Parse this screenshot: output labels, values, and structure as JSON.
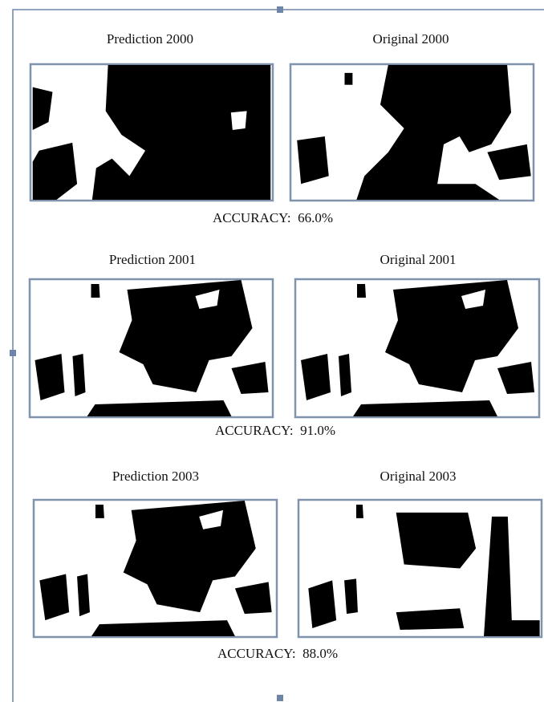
{
  "panels": [
    {
      "prediction_title": "Prediction 2000",
      "original_title": "Original 2000",
      "accuracy": "ACCURACY:  66.0%"
    },
    {
      "prediction_title": "Prediction 2001",
      "original_title": "Original 2001",
      "accuracy": "ACCURACY:  91.0%"
    },
    {
      "prediction_title": "Prediction 2003",
      "original_title": "Original 2003",
      "accuracy": "ACCURACY:  88.0%"
    }
  ]
}
